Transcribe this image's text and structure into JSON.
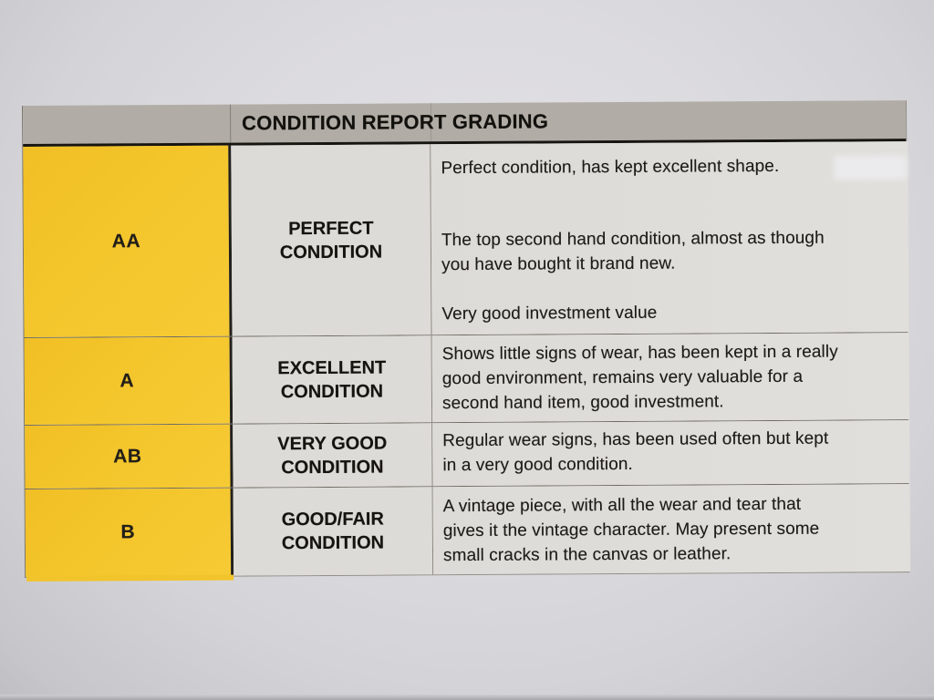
{
  "header": {
    "title": "CONDITION REPORT GRADING"
  },
  "rows": [
    {
      "grade": "AA",
      "condition": [
        "PERFECT",
        "CONDITION"
      ],
      "description": [
        [
          "Perfect condition, has kept excellent shape."
        ],
        [
          "The top second hand condition, almost as though",
          "you have bought it brand new."
        ],
        [
          "Very good investment value"
        ]
      ]
    },
    {
      "grade": "A",
      "condition": [
        "EXCELLENT",
        "CONDITION"
      ],
      "description": [
        [
          "Shows little signs of wear, has been kept in a really",
          "good environment, remains very valuable for a",
          "second hand item, good investment."
        ]
      ]
    },
    {
      "grade": "AB",
      "condition": [
        "VERY GOOD",
        "CONDITION"
      ],
      "description": [
        [
          "Regular wear signs, has been used often but kept",
          "in a very good condition."
        ]
      ]
    },
    {
      "grade": "B",
      "condition": [
        "GOOD/FAIR",
        "CONDITION"
      ],
      "description": [
        [
          "A vintage piece, with all the wear and tear that",
          "gives it the vintage character. May present some",
          "small cracks in the canvas or leather."
        ]
      ]
    }
  ],
  "colors": {
    "grade_column_yellow": "#f4c62c",
    "header_bg": "#b1ada6",
    "cell_bg": "#dddbd7",
    "paper": "#d9d8dc",
    "text": "#1b1916"
  }
}
